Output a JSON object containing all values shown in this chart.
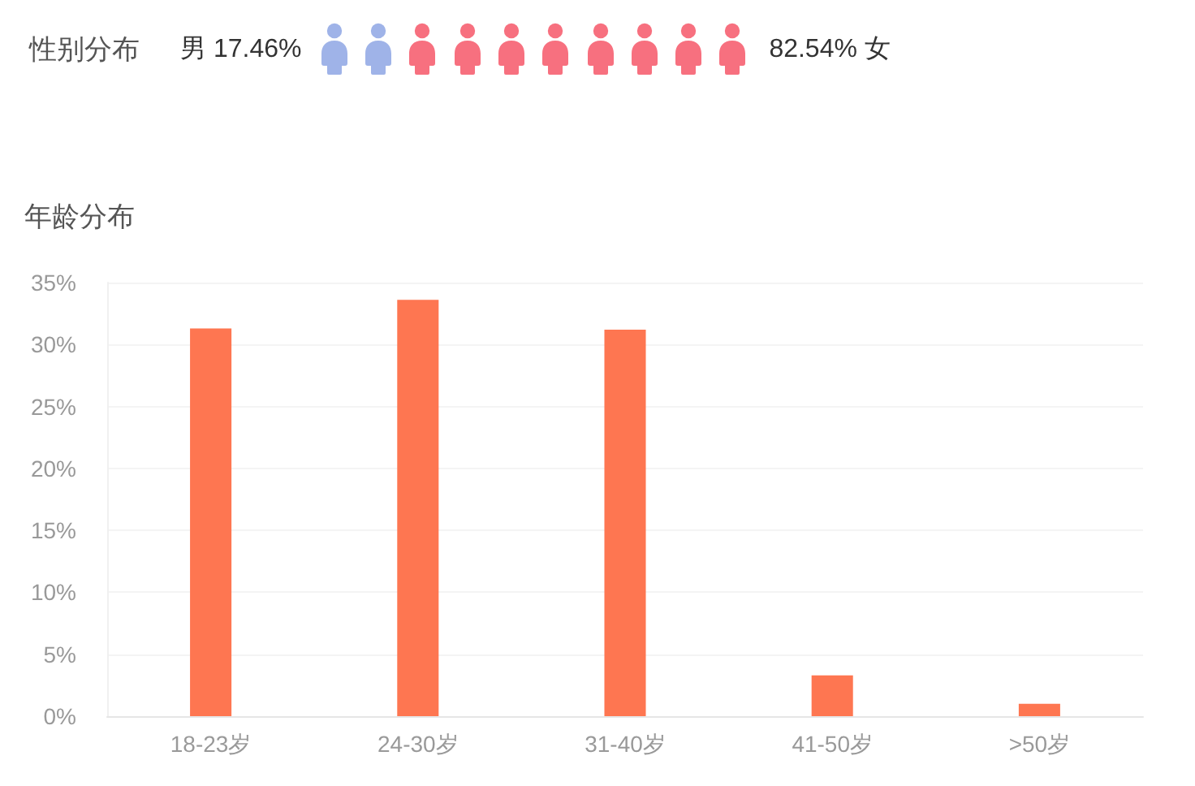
{
  "chart_data": [
    {
      "type": "other",
      "title": "性别分布",
      "categories": [
        "男",
        "女"
      ],
      "values": [
        17.46,
        82.54
      ],
      "value_labels": [
        "17.46%",
        "82.54%"
      ],
      "colors": [
        "#9fb3e8",
        "#f7707f"
      ]
    },
    {
      "type": "bar",
      "title": "年龄分布",
      "categories": [
        "18-23岁",
        "24-30岁",
        "31-40岁",
        "41-50岁",
        ">50岁"
      ],
      "values": [
        31.3,
        33.6,
        31.2,
        3.3,
        1.0
      ],
      "color": "#fe7651",
      "ylim": [
        0,
        35
      ],
      "yticks": [
        {
          "value": 0,
          "label": "0%"
        },
        {
          "value": 5,
          "label": "5%"
        },
        {
          "value": 10,
          "label": "10%"
        },
        {
          "value": 15,
          "label": "15%"
        },
        {
          "value": 20,
          "label": "20%"
        },
        {
          "value": 25,
          "label": "25%"
        },
        {
          "value": 30,
          "label": "30%"
        },
        {
          "value": 35,
          "label": "35%"
        }
      ],
      "grid": "y"
    }
  ]
}
